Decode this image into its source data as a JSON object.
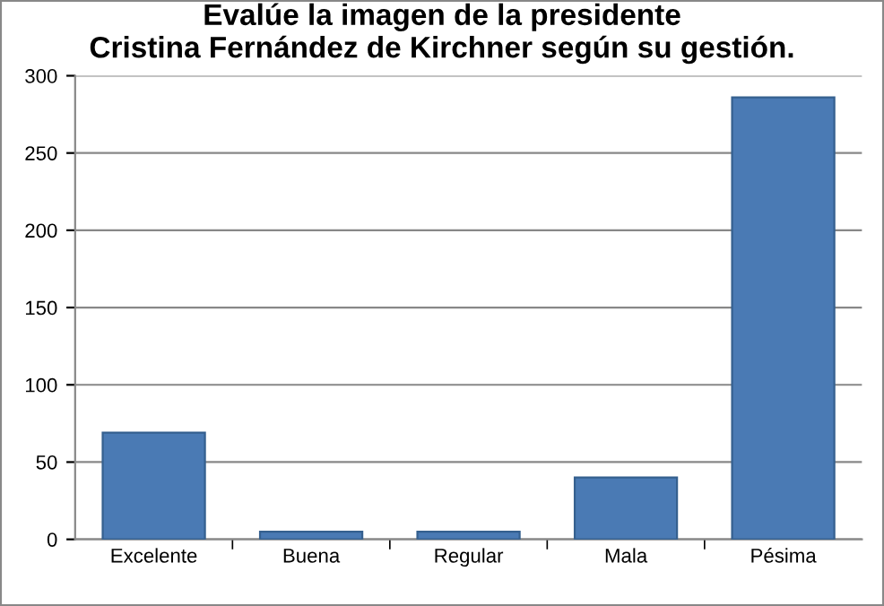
{
  "chart_data": {
    "type": "bar",
    "title": "Evalúe la imagen de la presidente\nCristina Fernández de Kirchner según su gestión.",
    "categories": [
      "Excelente",
      "Buena",
      "Regular",
      "Mala",
      "Pésima"
    ],
    "values": [
      69,
      5,
      5,
      40,
      286
    ],
    "color": "#4a7ab4",
    "ylim": [
      0,
      300
    ],
    "yticks": [
      0,
      50,
      100,
      150,
      200,
      250,
      300
    ],
    "grid": "y",
    "legend": false
  }
}
